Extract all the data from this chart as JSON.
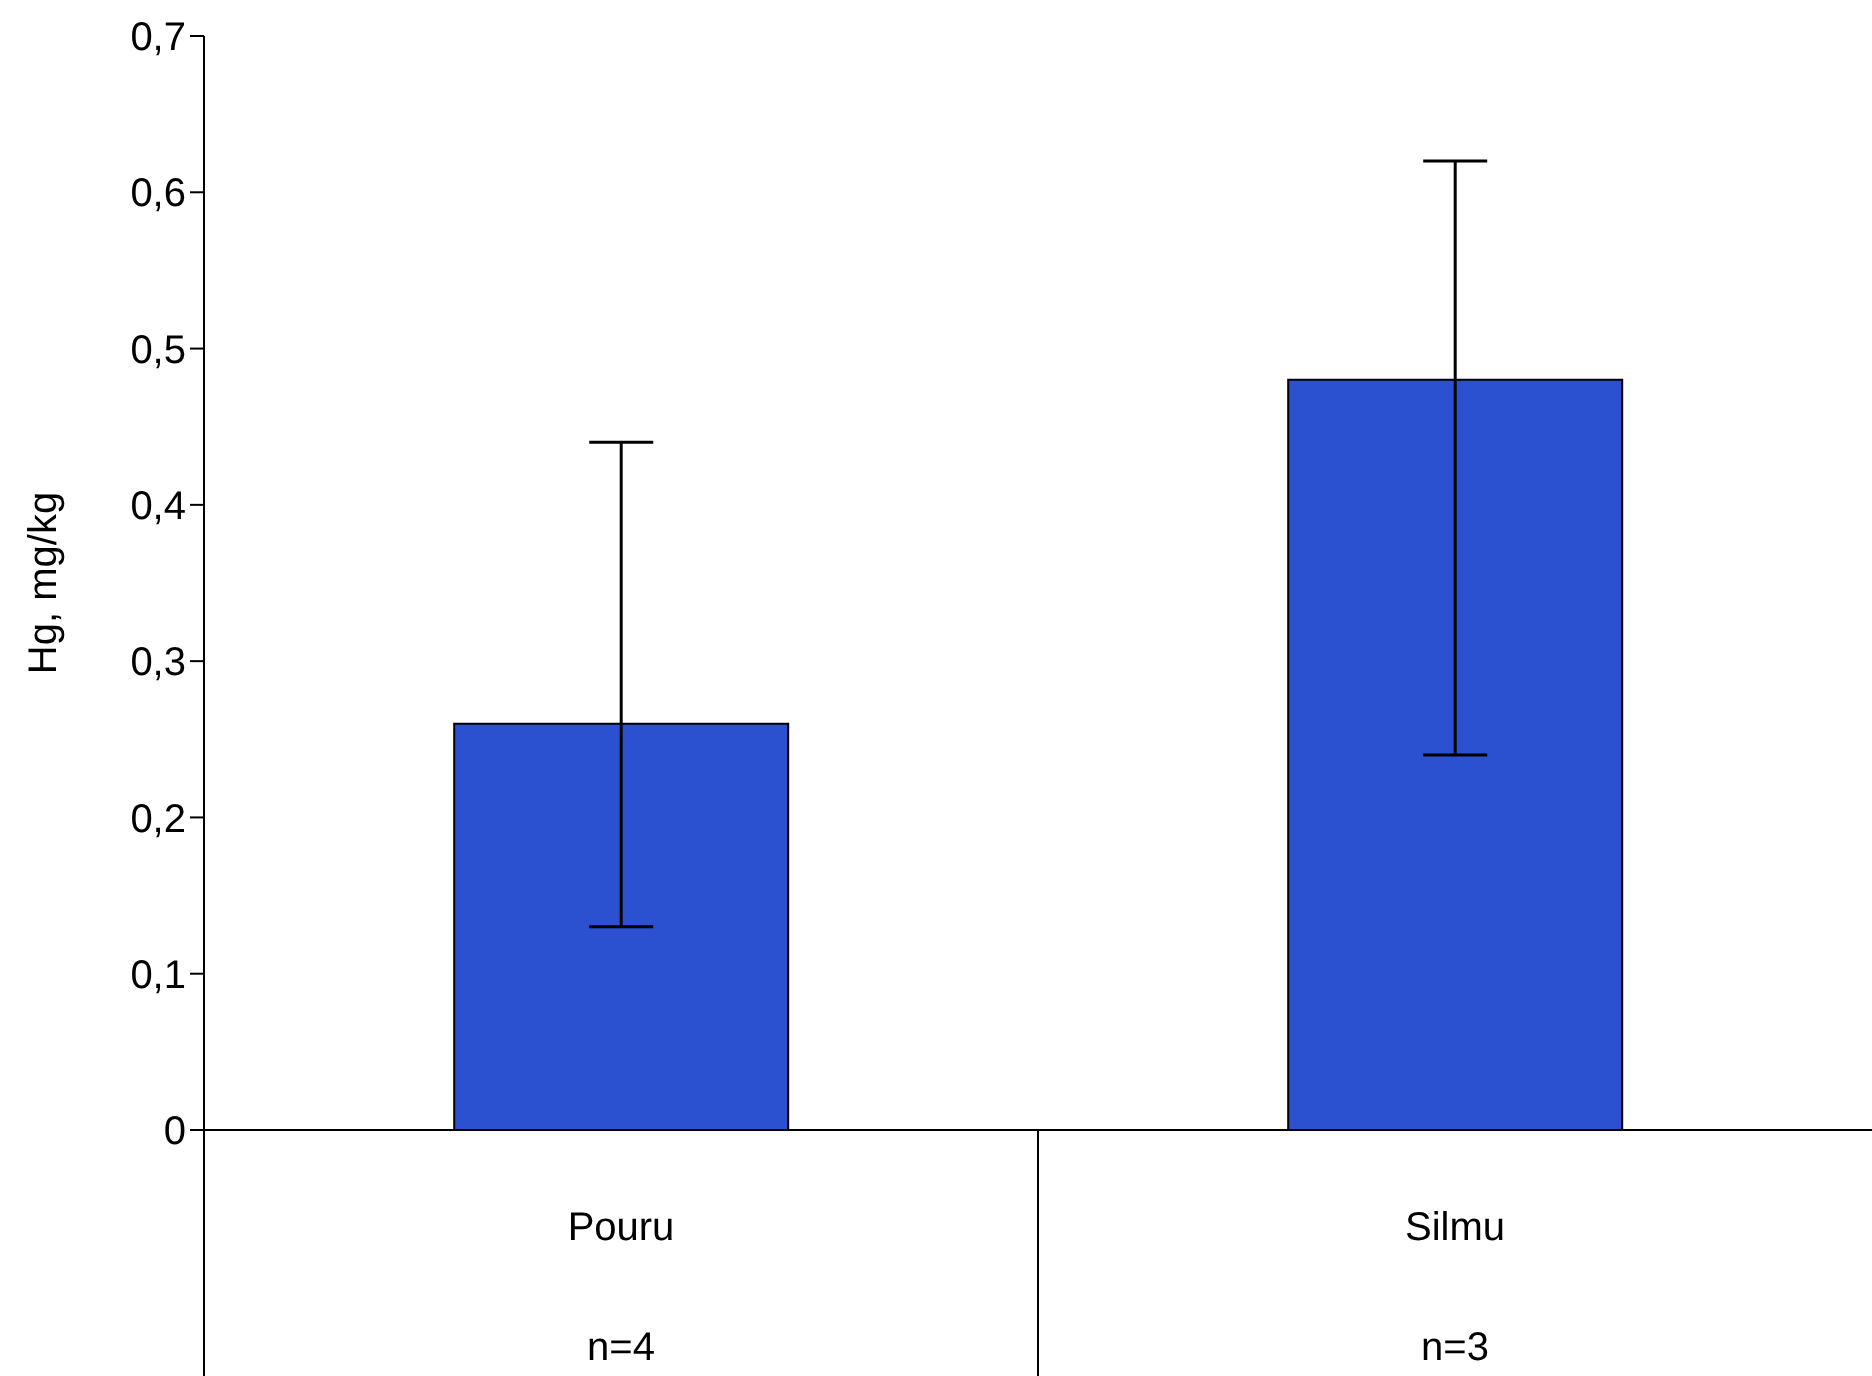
{
  "chart_data": {
    "type": "bar",
    "ylabel": "Hg, mg/kg",
    "categories": [
      "Pouru",
      "Silmu"
    ],
    "values": [
      0.26,
      0.48
    ],
    "errors": [
      [
        0.13,
        0.44
      ],
      [
        0.24,
        0.62
      ]
    ],
    "color": "#2b50d0",
    "ylim": [
      0,
      0.7
    ],
    "yticks": [
      0,
      {
        "value": 0.1,
        "label": "0,1"
      },
      {
        "value": 0.2,
        "label": "0,2"
      },
      {
        "value": 0.3,
        "label": "0,3"
      },
      {
        "value": 0.4,
        "label": "0,4"
      },
      {
        "value": 0.5,
        "label": "0,5"
      },
      {
        "value": 0.6,
        "label": "0,6"
      },
      {
        "value": 0.7,
        "label": "0,7"
      }
    ],
    "annotations": [
      "n=4",
      "n=3"
    ],
    "grid": false,
    "legend": false
  }
}
